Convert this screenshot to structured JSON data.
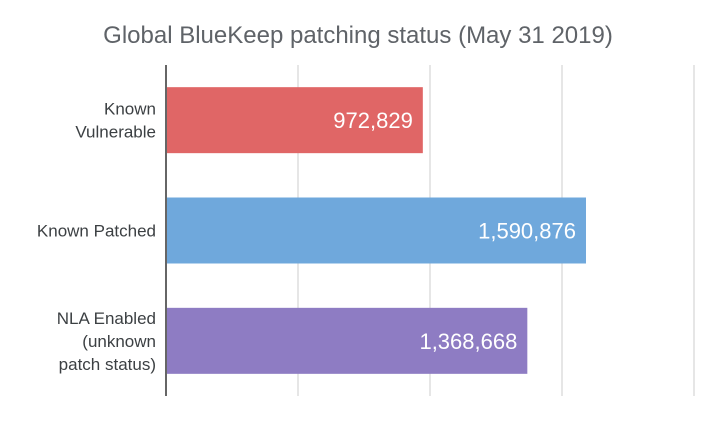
{
  "chart_data": {
    "type": "bar",
    "orientation": "horizontal",
    "title": "Global BlueKeep patching status (May 31 2019)",
    "categories": [
      [
        "Known",
        "Vulnerable"
      ],
      [
        "Known Patched"
      ],
      [
        "NLA Enabled",
        "(unknown",
        "patch status)"
      ]
    ],
    "values": [
      972829,
      1590876,
      1368668
    ],
    "value_labels": [
      "972,829",
      "1,590,876",
      "1,368,668"
    ],
    "colors": [
      "#e06666",
      "#6fa8dc",
      "#8e7cc3"
    ],
    "xlim": [
      0,
      2000000
    ],
    "gridlines": [
      0,
      500000,
      1000000,
      1500000,
      2000000
    ],
    "grid": true,
    "legend": "none"
  }
}
